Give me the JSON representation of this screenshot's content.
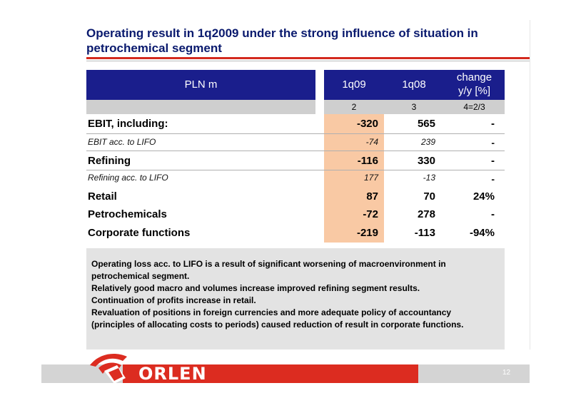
{
  "title": "Operating result in 1q2009 under the strong influence of situation in petrochemical segment",
  "table": {
    "header": {
      "label": "PLN m",
      "c1": "1q09",
      "c2": "1q08",
      "c3a": "change",
      "c3b": "y/y [%]"
    },
    "subheader": {
      "c1": "2",
      "c2": "3",
      "c3": "4=2/3"
    },
    "rows": [
      {
        "label": "EBIT, including:",
        "q09": "-320",
        "q08": "565",
        "change": "-"
      },
      {
        "label": "EBIT acc. to LIFO",
        "q09": "-74",
        "q08": "239",
        "change": "-"
      },
      {
        "label": "Refining",
        "q09": "-116",
        "q08": "330",
        "change": "-"
      },
      {
        "label": "Refining acc. to LIFO",
        "q09": "177",
        "q08": "-13",
        "change": "-"
      },
      {
        "label": "Retail",
        "q09": "87",
        "q08": "70",
        "change": "24%"
      },
      {
        "label": "Petrochemicals",
        "q09": "-72",
        "q08": "278",
        "change": "-"
      },
      {
        "label": "Corporate functions",
        "q09": "-219",
        "q08": "-113",
        "change": "-94%"
      }
    ]
  },
  "note": {
    "lines": [
      "Operating loss acc. to LIFO is a result of significant worsening of macroenvironment in petrochemical segment.",
      "Relatively good macro and volumes increase improved refining segment results.",
      "Continuation of profits increase in retail.",
      "Revaluation of positions in foreign currencies and more adequate policy of accountancy (principles of allocating costs to periods) caused reduction of result in corporate functions."
    ]
  },
  "footer": {
    "logo": "ORLEN",
    "page": "12"
  },
  "colors": {
    "header_bg": "#1a1e8c",
    "highlight": "#f9c9a4",
    "accent_red": "#d32a1e",
    "note_bg": "#e3e3e3"
  }
}
